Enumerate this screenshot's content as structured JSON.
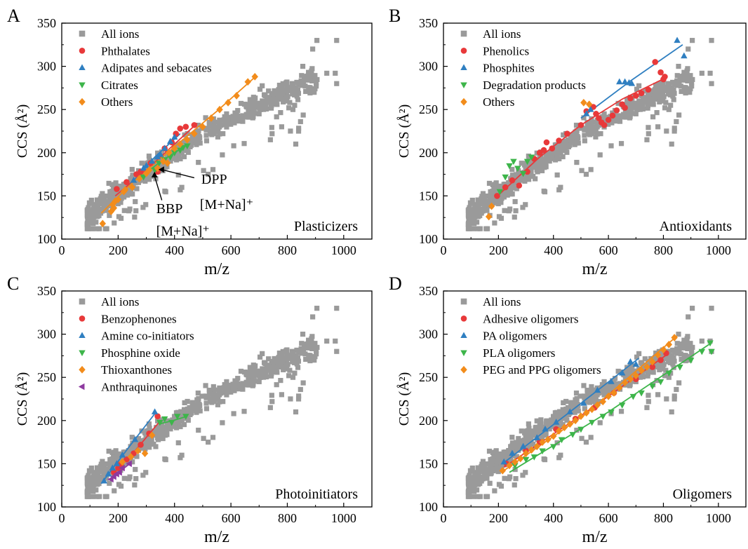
{
  "figure": {
    "panels": [
      {
        "letter": "A",
        "corner_label": "Plasticizers",
        "annotations": [
          {
            "lines": [
              "DPP",
              "[M+Na]⁺"
            ]
          },
          {
            "lines": [
              "BBP",
              "[M+Na]⁺"
            ]
          }
        ]
      },
      {
        "letter": "B",
        "corner_label": "Antioxidants",
        "annotations": []
      },
      {
        "letter": "C",
        "corner_label": "Photoinitiators",
        "annotations": []
      },
      {
        "letter": "D",
        "corner_label": "Oligomers",
        "annotations": []
      }
    ]
  },
  "chart_data": [
    {
      "type": "scatter",
      "title": "",
      "xlabel": "m/z",
      "ylabel": "CCS (Å²)",
      "xlim": [
        0,
        1100
      ],
      "ylim": [
        100,
        350
      ],
      "xticks": [
        0,
        200,
        400,
        600,
        800,
        1000
      ],
      "yticks": [
        100,
        150,
        200,
        250,
        300,
        350
      ],
      "grid": false,
      "legend_position": "top-left",
      "background_series": {
        "name": "All ions",
        "marker": "square",
        "color": "#9a9a9a"
      },
      "series": [
        {
          "name": "Phthalates",
          "marker": "circle",
          "color": "#e8393a",
          "x": [
            195,
            230,
            265,
            280,
            315,
            340,
            365,
            390,
            405,
            420,
            440,
            470
          ],
          "y": [
            158,
            166,
            175,
            178,
            188,
            178,
            205,
            212,
            222,
            228,
            230,
            232
          ]
        },
        {
          "name": "Adipates and sebacates",
          "marker": "triangle-up",
          "color": "#2f7fc1",
          "x": [
            255,
            290,
            300,
            320,
            340,
            350,
            365,
            385,
            400
          ],
          "y": [
            168,
            182,
            185,
            190,
            195,
            198,
            205,
            213,
            218
          ]
        },
        {
          "name": "Citrates",
          "marker": "triangle-down",
          "color": "#3db54a",
          "x": [
            290,
            330,
            345,
            365,
            385,
            400,
            420,
            430,
            445
          ],
          "y": [
            172,
            180,
            188,
            192,
            195,
            200,
            203,
            206,
            208
          ]
        },
        {
          "name": "Others",
          "marker": "diamond",
          "color": "#f28c1b",
          "x": [
            145,
            175,
            180,
            185,
            190,
            200,
            220,
            225,
            250,
            275,
            300,
            310,
            340,
            360,
            375,
            380,
            400,
            420,
            445,
            470,
            500,
            530,
            560,
            590,
            620,
            660,
            685
          ],
          "y": [
            118,
            132,
            140,
            136,
            144,
            146,
            155,
            157,
            160,
            170,
            176,
            180,
            182,
            190,
            188,
            200,
            205,
            210,
            215,
            222,
            230,
            240,
            250,
            258,
            266,
            282,
            288
          ]
        }
      ],
      "fits": [
        {
          "series": "Phthalates",
          "x": [
            190,
            300,
            400,
            480
          ],
          "y": [
            150,
            180,
            210,
            234
          ]
        },
        {
          "series": "Adipates and sebacates",
          "x": [
            240,
            330,
            420
          ],
          "y": [
            162,
            195,
            222
          ]
        },
        {
          "series": "Citrates",
          "x": [
            280,
            360,
            450
          ],
          "y": [
            172,
            192,
            210
          ]
        },
        {
          "series": "Others",
          "x": [
            140,
            250,
            400,
            550,
            690
          ],
          "y": [
            130,
            165,
            207,
            248,
            289
          ]
        }
      ]
    },
    {
      "type": "scatter",
      "title": "",
      "xlabel": "m/z",
      "ylabel": "CCS (Å²)",
      "xlim": [
        0,
        1100
      ],
      "ylim": [
        100,
        350
      ],
      "xticks": [
        0,
        200,
        400,
        600,
        800,
        1000
      ],
      "yticks": [
        100,
        150,
        200,
        250,
        300,
        350
      ],
      "grid": false,
      "legend_position": "top-left",
      "background_series": {
        "name": "All ions",
        "marker": "square",
        "color": "#9a9a9a"
      },
      "series": [
        {
          "name": "Phenolics",
          "marker": "circle",
          "color": "#e8393a",
          "x": [
            195,
            225,
            250,
            275,
            305,
            330,
            350,
            365,
            375,
            395,
            420,
            450,
            500,
            520,
            545,
            555,
            565,
            575,
            585,
            600,
            615,
            630,
            650,
            660,
            680,
            700,
            720,
            745,
            770,
            790,
            800,
            805
          ],
          "y": [
            150,
            160,
            168,
            162,
            178,
            193,
            200,
            203,
            212,
            205,
            214,
            222,
            232,
            248,
            253,
            245,
            240,
            235,
            232,
            238,
            243,
            249,
            256,
            252,
            263,
            266,
            269,
            273,
            305,
            293,
            285,
            288
          ]
        },
        {
          "name": "Phosphites",
          "marker": "triangle-up",
          "color": "#2f7fc1",
          "x": [
            520,
            535,
            640,
            660,
            675,
            685,
            850,
            875
          ],
          "y": [
            245,
            250,
            282,
            282,
            281,
            280,
            330,
            312
          ]
        },
        {
          "name": "Degradation products",
          "marker": "triangle-down",
          "color": "#3db54a",
          "x": [
            205,
            225,
            240,
            255,
            270,
            290,
            305,
            320
          ],
          "y": [
            155,
            172,
            185,
            190,
            182,
            176,
            190,
            195
          ]
        },
        {
          "name": "Others",
          "marker": "diamond",
          "color": "#f28c1b",
          "x": [
            165,
            175,
            510,
            530
          ],
          "y": [
            126,
            138,
            258,
            256
          ]
        }
      ],
      "fits": [
        {
          "series": "Phenolics",
          "x": [
            190,
            350,
            500,
            650,
            810
          ],
          "y": [
            148,
            195,
            232,
            262,
            287
          ]
        },
        {
          "series": "Phosphites",
          "x": [
            500,
            680,
            870
          ],
          "y": [
            240,
            283,
            325
          ]
        }
      ]
    },
    {
      "type": "scatter",
      "title": "",
      "xlabel": "m/z",
      "ylabel": "CCS (Å²)",
      "xlim": [
        0,
        1100
      ],
      "ylim": [
        100,
        350
      ],
      "xticks": [
        0,
        200,
        400,
        600,
        800,
        1000
      ],
      "yticks": [
        100,
        150,
        200,
        250,
        300,
        350
      ],
      "grid": false,
      "legend_position": "top-left",
      "background_series": {
        "name": "All ions",
        "marker": "square",
        "color": "#9a9a9a"
      },
      "series": [
        {
          "name": "Benzophenones",
          "marker": "circle",
          "color": "#e8393a",
          "x": [
            185,
            200,
            210,
            230,
            255,
            280,
            310,
            340
          ],
          "y": [
            140,
            145,
            150,
            155,
            162,
            172,
            185,
            205
          ]
        },
        {
          "name": "Amine co-initiators",
          "marker": "triangle-up",
          "color": "#2f7fc1",
          "x": [
            150,
            165,
            180,
            195,
            215,
            260,
            330
          ],
          "y": [
            130,
            138,
            145,
            150,
            160,
            178,
            210
          ]
        },
        {
          "name": "Phosphine oxide",
          "marker": "triangle-down",
          "color": "#3db54a",
          "x": [
            348,
            365,
            390,
            410,
            440
          ],
          "y": [
            198,
            202,
            198,
            205,
            205
          ]
        },
        {
          "name": "Thioxanthones",
          "marker": "diamond",
          "color": "#f28c1b",
          "x": [
            215,
            245,
            270,
            295,
            320
          ],
          "y": [
            152,
            158,
            165,
            162,
            183
          ]
        },
        {
          "name": "Anthraquinones",
          "marker": "triangle-left",
          "color": "#8e3aa0",
          "x": [
            175,
            185,
            195,
            205,
            215,
            240
          ],
          "y": [
            132,
            135,
            138,
            140,
            145,
            150
          ]
        }
      ],
      "fits": [
        {
          "series": "Benzophenones",
          "x": [
            180,
            260,
            345
          ],
          "y": [
            138,
            165,
            198
          ]
        },
        {
          "series": "Amine co-initiators",
          "x": [
            140,
            240,
            335
          ],
          "y": [
            127,
            170,
            210
          ]
        },
        {
          "series": "Phosphine oxide",
          "x": [
            345,
            395,
            445
          ],
          "y": [
            196,
            200,
            205
          ]
        },
        {
          "series": "Anthraquinones",
          "x": [
            170,
            245
          ],
          "y": [
            132,
            151
          ]
        }
      ]
    },
    {
      "type": "scatter",
      "title": "",
      "xlabel": "m/z",
      "ylabel": "CCS (Å²)",
      "xlim": [
        0,
        1100
      ],
      "ylim": [
        100,
        350
      ],
      "xticks": [
        0,
        200,
        400,
        600,
        800,
        1000
      ],
      "yticks": [
        100,
        150,
        200,
        250,
        300,
        350
      ],
      "grid": false,
      "legend_position": "top-left",
      "background_series": {
        "name": "All ions",
        "marker": "square",
        "color": "#9a9a9a"
      },
      "series": [
        {
          "name": "Adhesive oligomers",
          "marker": "circle",
          "color": "#e8393a",
          "x": [
            230,
            300,
            350,
            410,
            480,
            550,
            620,
            700,
            760,
            790,
            810
          ],
          "y": [
            150,
            165,
            175,
            190,
            202,
            215,
            232,
            248,
            262,
            270,
            278
          ]
        },
        {
          "name": "PA oligomers",
          "marker": "triangle-up",
          "color": "#2f7fc1",
          "x": [
            220,
            250,
            290,
            340,
            370,
            410,
            460,
            510,
            560,
            610,
            650,
            680,
            700
          ],
          "y": [
            152,
            162,
            170,
            180,
            190,
            198,
            210,
            220,
            235,
            245,
            255,
            268,
            265
          ]
        },
        {
          "name": "PLA oligomers",
          "marker": "triangle-down",
          "color": "#3db54a",
          "x": [
            260,
            300,
            330,
            360,
            400,
            430,
            470,
            500,
            540,
            580,
            610,
            650,
            690,
            720,
            760,
            790,
            820,
            860,
            900,
            940,
            970,
            975
          ],
          "y": [
            148,
            155,
            158,
            165,
            170,
            178,
            184,
            190,
            198,
            205,
            210,
            218,
            228,
            232,
            240,
            245,
            255,
            262,
            270,
            280,
            290,
            280
          ]
        },
        {
          "name": "PEG and PPG oligomers",
          "marker": "diamond",
          "color": "#f28c1b",
          "x": [
            215,
            240,
            260,
            280,
            300,
            320,
            340,
            360,
            380,
            400,
            420,
            440,
            460,
            480,
            500,
            520,
            540,
            560,
            580,
            600,
            620,
            640,
            660,
            680,
            700,
            720,
            740,
            760,
            780,
            800,
            820,
            840
          ],
          "y": [
            142,
            148,
            152,
            156,
            162,
            166,
            170,
            175,
            178,
            182,
            188,
            192,
            196,
            200,
            205,
            209,
            213,
            218,
            222,
            228,
            232,
            238,
            244,
            248,
            252,
            258,
            262,
            268,
            276,
            282,
            288,
            296
          ]
        }
      ],
      "fits": [
        {
          "series": "Adhesive oligomers",
          "x": [
            220,
            520,
            820
          ],
          "y": [
            146,
            210,
            278
          ]
        },
        {
          "series": "PA oligomers",
          "x": [
            215,
            460,
            710
          ],
          "y": [
            150,
            210,
            272
          ]
        },
        {
          "series": "PLA oligomers",
          "x": [
            240,
            600,
            975
          ],
          "y": [
            140,
            210,
            290
          ]
        },
        {
          "series": "PEG and PPG oligomers",
          "x": [
            210,
            520,
            850
          ],
          "y": [
            140,
            208,
            298
          ]
        }
      ]
    }
  ]
}
